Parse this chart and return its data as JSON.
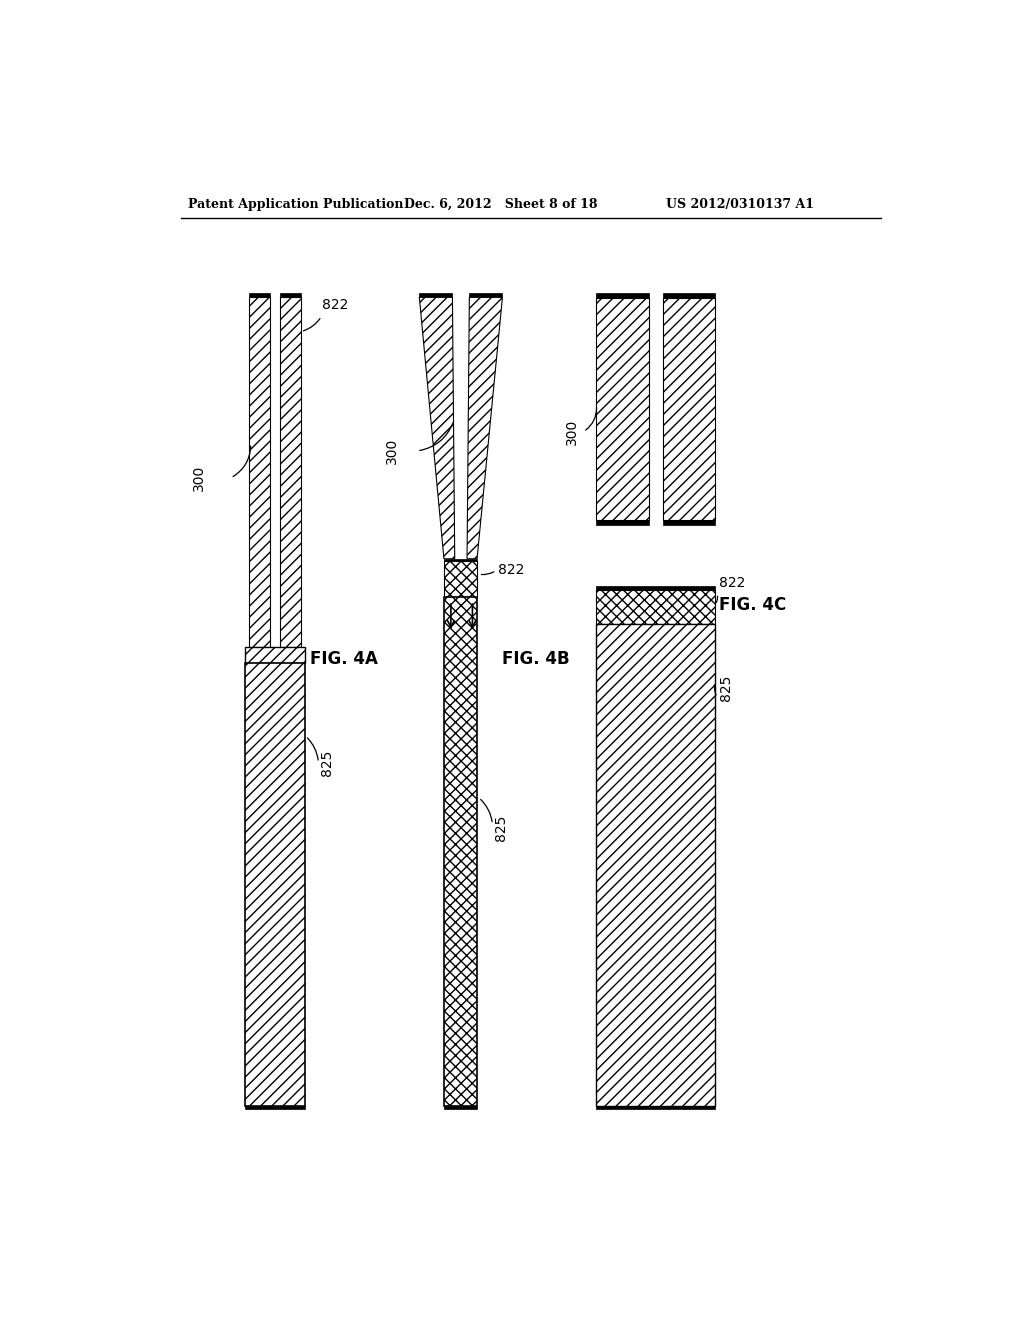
{
  "header_left": "Patent Application Publication",
  "header_mid": "Dec. 6, 2012   Sheet 8 of 18",
  "header_right": "US 2012/0310137 A1",
  "bg_color": "#ffffff",
  "line_color": "#000000"
}
